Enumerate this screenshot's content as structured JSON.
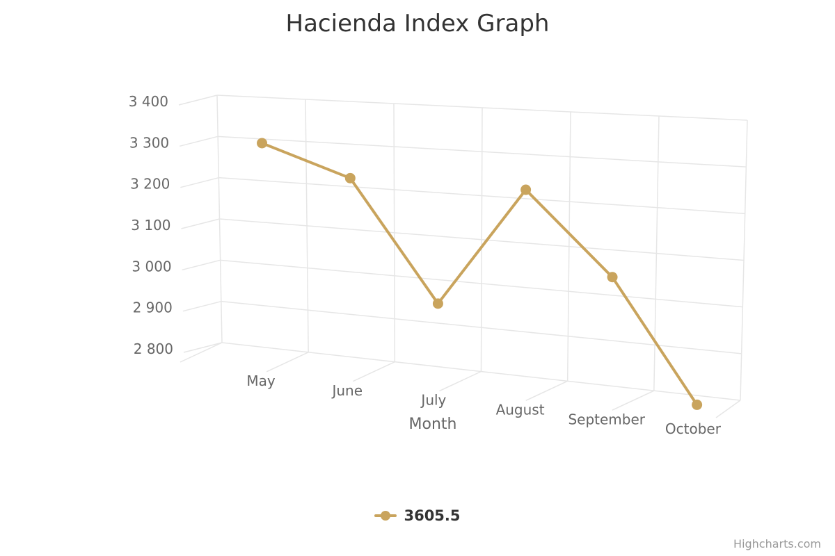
{
  "chart_data": {
    "type": "line",
    "title": "Hacienda Index Graph",
    "xlabel": "Month",
    "ylabel": "",
    "categories": [
      "May",
      "June",
      "July",
      "August",
      "September",
      "October"
    ],
    "series": [
      {
        "name": "3605.5",
        "values": [
          3290,
          3220,
          2945,
          3220,
          3040,
          2780
        ],
        "color": "#C9A45D"
      }
    ],
    "ylim": [
      2800,
      3400
    ],
    "yticks": [
      {
        "value": 2800,
        "label": "2 800"
      },
      {
        "value": 2900,
        "label": "2 900"
      },
      {
        "value": 3000,
        "label": "3 000"
      },
      {
        "value": 3100,
        "label": "3 100"
      },
      {
        "value": 3200,
        "label": "3 200"
      },
      {
        "value": 3300,
        "label": "3 300"
      },
      {
        "value": 3400,
        "label": "3 400"
      }
    ],
    "grid": true,
    "legend_position": "bottom-center",
    "style": "3d-perspective"
  },
  "credits": "Highcharts.com",
  "colors": {
    "series": "#C9A45D",
    "grid": "#e6e6e6",
    "axis_text": "#666666",
    "title_text": "#333333",
    "credits_text": "#999999"
  }
}
